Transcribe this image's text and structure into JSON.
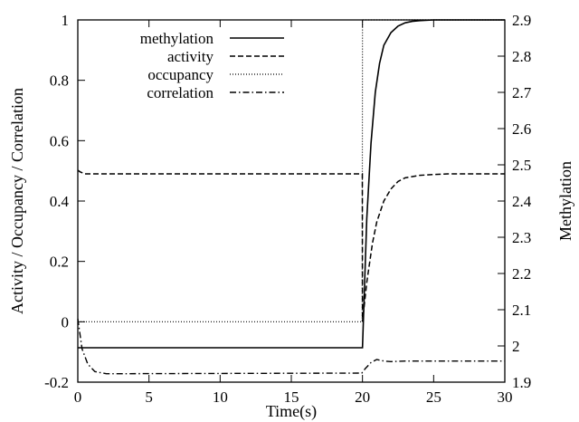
{
  "chart_data": {
    "type": "line",
    "title": "",
    "xlabel": "Time(s)",
    "ylabel_left": "Activity / Occupancy / Correlation",
    "ylabel_right": "Methylation",
    "xlim": [
      0,
      30
    ],
    "ylim_left": [
      -0.2,
      1.0
    ],
    "ylim_right": [
      1.9,
      2.9
    ],
    "xticks": [
      "0",
      "5",
      "10",
      "15",
      "20",
      "25",
      "30"
    ],
    "yticks_left": [
      "-0.2",
      "0",
      "0.2",
      "0.4",
      "0.6",
      "0.8",
      "1"
    ],
    "yticks_right": [
      "1.9",
      "2",
      "2.1",
      "2.2",
      "2.3",
      "2.4",
      "2.5",
      "2.6",
      "2.7",
      "2.8",
      "2.9"
    ],
    "grid": false,
    "legend_position": "top-left",
    "series": [
      {
        "name": "methylation",
        "axis": "right",
        "style": "solid",
        "x": [
          0,
          19.95,
          20.0,
          20.3,
          20.6,
          20.9,
          21.2,
          21.5,
          22.0,
          22.5,
          23.0,
          23.5,
          24.0,
          25.0,
          26.0,
          30.0
        ],
        "y": [
          1.995,
          1.995,
          1.995,
          2.35,
          2.56,
          2.7,
          2.78,
          2.83,
          2.865,
          2.883,
          2.892,
          2.896,
          2.898,
          2.9,
          2.9,
          2.9
        ]
      },
      {
        "name": "activity",
        "axis": "left",
        "style": "dashed",
        "x": [
          0,
          0.15,
          0.5,
          19.95,
          19.99,
          20.0,
          20.3,
          20.7,
          21.0,
          21.5,
          22.0,
          22.5,
          23.0,
          24.0,
          25.0,
          26.0,
          30.0
        ],
        "y": [
          0.502,
          0.497,
          0.49,
          0.49,
          0.49,
          0.0,
          0.13,
          0.26,
          0.33,
          0.4,
          0.44,
          0.465,
          0.477,
          0.485,
          0.488,
          0.49,
          0.49
        ]
      },
      {
        "name": "occupancy",
        "axis": "left",
        "style": "dotted",
        "x": [
          0,
          19.98,
          20.0,
          30.0
        ],
        "y": [
          0.0,
          0.0,
          1.0,
          1.0
        ]
      },
      {
        "name": "correlation",
        "axis": "left",
        "style": "dashdot",
        "x": [
          0,
          0.3,
          0.7,
          1.2,
          2.0,
          3.0,
          19.95,
          20.2,
          20.6,
          21.0,
          21.5,
          22.0,
          23.0,
          30.0
        ],
        "y": [
          0.01,
          -0.09,
          -0.14,
          -0.165,
          -0.172,
          -0.172,
          -0.17,
          -0.155,
          -0.135,
          -0.125,
          -0.13,
          -0.132,
          -0.13,
          -0.13
        ]
      }
    ]
  }
}
